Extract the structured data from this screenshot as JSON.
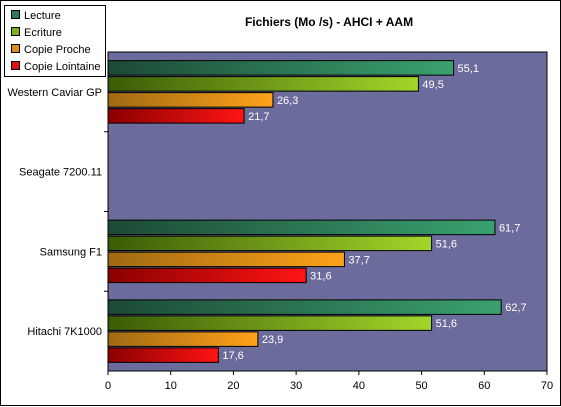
{
  "chart_data": {
    "type": "bar",
    "orientation": "horizontal",
    "title": "Fichiers (Mo /s) - AHCI + AAM",
    "categories": [
      "Western Caviar GP",
      "Seagate 7200.11",
      "Samsung F1",
      "Hitachi 7K1000"
    ],
    "series": [
      {
        "name": "Lecture",
        "values": [
          55.1,
          null,
          61.7,
          62.7
        ],
        "labels": [
          "55,1",
          "",
          "61,7",
          "62,7"
        ]
      },
      {
        "name": "Ecriture",
        "values": [
          49.5,
          null,
          51.6,
          51.6
        ],
        "labels": [
          "49,5",
          "",
          "51,6",
          "51,6"
        ]
      },
      {
        "name": "Copie Proche",
        "values": [
          26.3,
          null,
          37.7,
          23.9
        ],
        "labels": [
          "26,3",
          "",
          "37,7",
          "23,9"
        ]
      },
      {
        "name": "Copie Lointaine",
        "values": [
          21.7,
          null,
          31.6,
          17.6
        ],
        "labels": [
          "21,7",
          "",
          "31,6",
          "17,6"
        ]
      }
    ],
    "xlim": [
      0,
      70
    ],
    "xticks": [
      0,
      10,
      20,
      30,
      40,
      50,
      60,
      70
    ],
    "xlabel": "",
    "ylabel": "",
    "legend_position": "top-left",
    "grid": false,
    "colors": {
      "plot_background": "#6b6b9c",
      "series": [
        {
          "dark": "#1d4a35",
          "light": "#3aa170"
        },
        {
          "dark": "#3a5c06",
          "light": "#a3d62a"
        },
        {
          "dark": "#a06a12",
          "light": "#ffa21a"
        },
        {
          "dark": "#8a0000",
          "light": "#ff1414"
        }
      ],
      "legend_swatches": [
        "#2b7a55",
        "#7fb21a",
        "#e08a1a",
        "#e01010"
      ]
    }
  }
}
